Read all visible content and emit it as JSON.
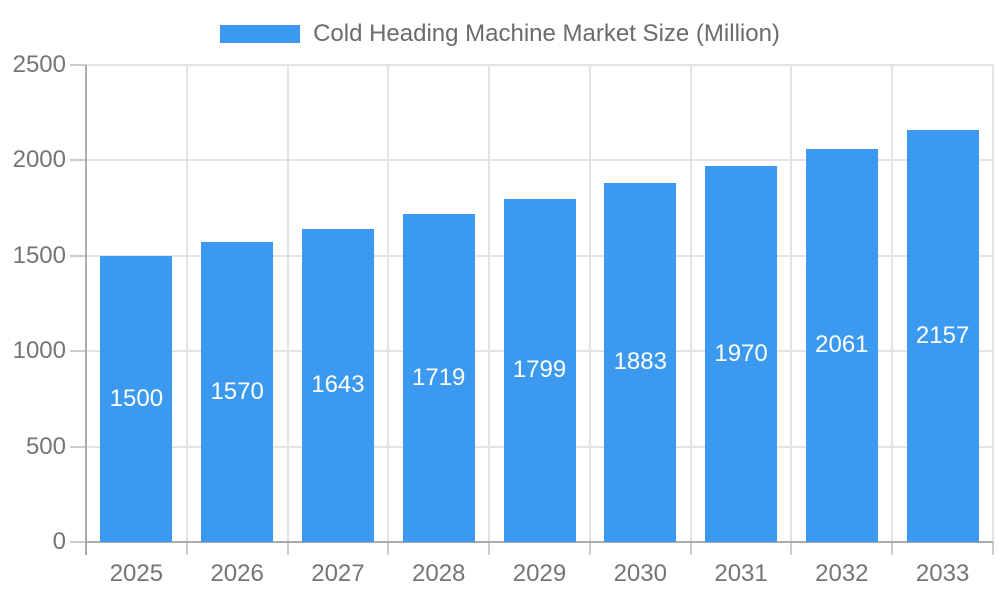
{
  "chart_data": {
    "type": "bar",
    "title": "Cold Heading Machine Market Size (Million)",
    "categories": [
      "2025",
      "2026",
      "2027",
      "2028",
      "2029",
      "2030",
      "2031",
      "2032",
      "2033"
    ],
    "values": [
      1500,
      1570,
      1643,
      1719,
      1799,
      1883,
      1970,
      2061,
      2157
    ],
    "xlabel": "",
    "ylabel": "",
    "ylim": [
      0,
      2500
    ],
    "yticks": [
      0,
      500,
      1000,
      1500,
      2000,
      2500
    ],
    "grid": true,
    "legend_position": "top",
    "value_label_position": "inside-middle",
    "colors": {
      "bar": "#3b9af0",
      "value_label_text": "#ffffff",
      "axis_text": "#757575",
      "legend_text": "#6b6b6b",
      "grid_line": "#e3e3e3",
      "tick_line": "#cccccc",
      "axis_line": "#ababab",
      "background": "#ffffff"
    }
  }
}
